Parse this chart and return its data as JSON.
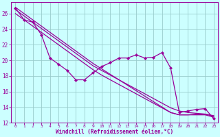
{
  "xlabel": "Windchill (Refroidissement éolien,°C)",
  "x_values": [
    0,
    1,
    2,
    3,
    4,
    5,
    6,
    7,
    8,
    9,
    10,
    11,
    12,
    13,
    14,
    15,
    16,
    17,
    18,
    19,
    20,
    21,
    22,
    23
  ],
  "y_data": [
    26.7,
    25.2,
    24.9,
    23.3,
    20.3,
    19.5,
    18.7,
    17.5,
    17.5,
    18.4,
    19.2,
    19.7,
    20.3,
    20.3,
    20.7,
    20.3,
    20.4,
    21.0,
    19.0,
    13.3,
    13.5,
    13.7,
    13.8,
    12.5
  ],
  "reg_line1": [
    26.5,
    25.7,
    24.9,
    24.1,
    23.3,
    22.5,
    21.7,
    20.9,
    20.1,
    19.3,
    18.7,
    18.1,
    17.5,
    16.9,
    16.3,
    15.7,
    15.1,
    14.5,
    13.9,
    13.5,
    13.3,
    13.2,
    13.1,
    12.8
  ],
  "reg_line2": [
    26.0,
    25.2,
    24.4,
    23.6,
    22.8,
    22.0,
    21.2,
    20.4,
    19.6,
    18.8,
    18.1,
    17.5,
    16.9,
    16.3,
    15.7,
    15.1,
    14.5,
    13.9,
    13.3,
    13.0,
    13.0,
    13.0,
    13.0,
    12.7
  ],
  "reg_line3": [
    26.8,
    26.0,
    25.2,
    24.4,
    23.6,
    22.8,
    22.0,
    21.2,
    20.4,
    19.6,
    18.9,
    18.2,
    17.5,
    16.8,
    16.1,
    15.4,
    14.7,
    14.0,
    13.3,
    13.0,
    13.0,
    13.1,
    13.1,
    12.9
  ],
  "line_color": "#990099",
  "bg_color": "#ccffff",
  "grid_color": "#99cccc",
  "ylim": [
    12,
    27
  ],
  "yticks": [
    12,
    14,
    16,
    18,
    20,
    22,
    24,
    26
  ],
  "xlim": [
    -0.5,
    23.5
  ]
}
